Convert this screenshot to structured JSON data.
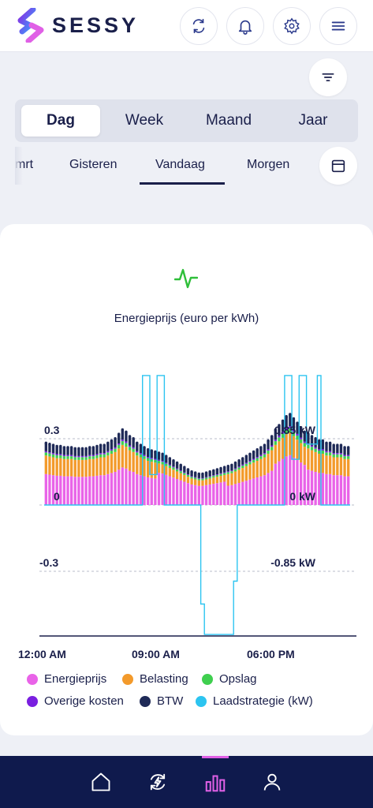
{
  "header": {
    "brand": "SESSY",
    "buttons": [
      {
        "icon": "refresh-icon"
      },
      {
        "icon": "bell-icon"
      },
      {
        "icon": "gear-icon"
      },
      {
        "icon": "menu-icon"
      }
    ]
  },
  "subbar": {
    "filter_icon": "filter-icon"
  },
  "period_tabs": {
    "items": [
      "Dag",
      "Week",
      "Maand",
      "Jaar"
    ],
    "active": "Dag"
  },
  "day_tabs": {
    "items": [
      "mrt",
      "Gisteren",
      "Vandaag",
      "Morgen"
    ],
    "active": "Vandaag",
    "calendar_icon": "calendar-icon"
  },
  "chart_card": {
    "icon": "pulse-icon",
    "title": "Energieprijs (euro per kWh)"
  },
  "chart_data": {
    "type": "bar",
    "stacked": true,
    "x_tick_labels": [
      "12:00 AM",
      "09:00 AM",
      "06:00 PM"
    ],
    "y_tick_labels_left": [
      "0.3",
      "0",
      "-0.3"
    ],
    "y_tick_labels_right": [
      "0.85 kW",
      "0 kW",
      "-0.85 kW"
    ],
    "ylim": [
      -0.6,
      0.6
    ],
    "y2lim": [
      -1.7,
      1.7
    ],
    "interval_minutes": 15,
    "series_totals": [
      0.28,
      0.275,
      0.27,
      0.265,
      0.265,
      0.26,
      0.26,
      0.26,
      0.255,
      0.255,
      0.255,
      0.255,
      0.26,
      0.26,
      0.265,
      0.27,
      0.27,
      0.28,
      0.29,
      0.3,
      0.32,
      0.34,
      0.33,
      0.31,
      0.3,
      0.28,
      0.27,
      0.26,
      0.25,
      0.245,
      0.24,
      0.235,
      0.23,
      0.22,
      0.21,
      0.2,
      0.19,
      0.18,
      0.17,
      0.16,
      0.15,
      0.145,
      0.14,
      0.14,
      0.145,
      0.15,
      0.155,
      0.16,
      0.165,
      0.17,
      0.175,
      0.18,
      0.19,
      0.2,
      0.21,
      0.22,
      0.23,
      0.24,
      0.25,
      0.26,
      0.27,
      0.29,
      0.31,
      0.34,
      0.36,
      0.38,
      0.4,
      0.41,
      0.39,
      0.37,
      0.35,
      0.33,
      0.32,
      0.31,
      0.3,
      0.29,
      0.29,
      0.28,
      0.28,
      0.27,
      0.27,
      0.27,
      0.26,
      0.26
    ],
    "components_share": {
      "Energieprijs": 0.5,
      "Belasting": 0.3,
      "Opslag": 0.05,
      "Overige kosten": 0.02,
      "BTW": 0.13
    },
    "charge_strategy_kw": {
      "name": "Laadstrategie (kW)",
      "segments": [
        {
          "from": 0,
          "to": 27,
          "kw": 0
        },
        {
          "from": 27,
          "to": 29,
          "kw": 1.7
        },
        {
          "from": 29,
          "to": 31,
          "kw": 0.4
        },
        {
          "from": 31,
          "to": 33,
          "kw": 1.7
        },
        {
          "from": 33,
          "to": 43,
          "kw": 0
        },
        {
          "from": 43,
          "to": 44,
          "kw": -1.3
        },
        {
          "from": 44,
          "to": 52,
          "kw": -1.7
        },
        {
          "from": 52,
          "to": 53,
          "kw": -1.0
        },
        {
          "from": 53,
          "to": 66,
          "kw": 0
        },
        {
          "from": 66,
          "to": 68,
          "kw": 1.7
        },
        {
          "from": 68,
          "to": 70,
          "kw": 0.6
        },
        {
          "from": 70,
          "to": 72,
          "kw": 1.7
        },
        {
          "from": 72,
          "to": 75,
          "kw": 0.8
        },
        {
          "from": 75,
          "to": 76,
          "kw": 1.7
        },
        {
          "from": 76,
          "to": 84,
          "kw": 0
        }
      ]
    },
    "legend": [
      {
        "name": "Energieprijs",
        "color": "#e963e8"
      },
      {
        "name": "Belasting",
        "color": "#f39a2b"
      },
      {
        "name": "Opslag",
        "color": "#3fcf4f"
      },
      {
        "name": "Overige kosten",
        "color": "#7a1fe0"
      },
      {
        "name": "BTW",
        "color": "#1f2a57"
      },
      {
        "name": "Laadstrategie (kW)",
        "color": "#2cc4f0"
      }
    ]
  },
  "bottom_nav": {
    "items": [
      {
        "icon": "home-icon"
      },
      {
        "icon": "energy-cycle-icon"
      },
      {
        "icon": "bar-chart-icon"
      },
      {
        "icon": "user-icon"
      }
    ],
    "active_icon": "bar-chart-icon",
    "active_color": "#e060e6"
  }
}
